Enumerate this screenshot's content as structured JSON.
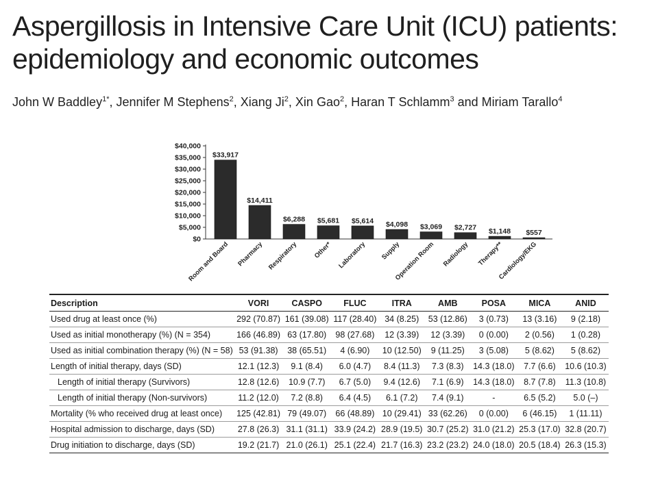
{
  "paper": {
    "title_line1": "Aspergillosis in Intensive Care Unit (ICU) patients:",
    "title_line2": "epidemiology and economic outcomes",
    "authors": [
      {
        "name": "John W Baddley",
        "sup": "1*",
        "sep": ", "
      },
      {
        "name": "Jennifer M Stephens",
        "sup": "2",
        "sep": ", "
      },
      {
        "name": "Xiang Ji",
        "sup": "2",
        "sep": ", "
      },
      {
        "name": "Xin Gao",
        "sup": "2",
        "sep": ", "
      },
      {
        "name": "Haran T Schlamm",
        "sup": "3",
        "sep": " and "
      },
      {
        "name": "Miriam Tarallo",
        "sup": "4",
        "sep": ""
      }
    ]
  },
  "chart_data": {
    "type": "bar",
    "title": "",
    "xlabel": "",
    "ylabel": "",
    "ylim": [
      0,
      40000
    ],
    "y_ticks": [
      "$0",
      "$5,000",
      "$10,000",
      "$15,000",
      "$20,000",
      "$25,000",
      "$30,000",
      "$35,000",
      "$40,000"
    ],
    "y_tick_values": [
      0,
      5000,
      10000,
      15000,
      20000,
      25000,
      30000,
      35000,
      40000
    ],
    "categories": [
      "Room and Board",
      "Pharmacy",
      "Respiratory",
      "Other*",
      "Laboratory",
      "Supply",
      "Operation Room",
      "Radiology",
      "Therapy**",
      "Cardiology/EKG"
    ],
    "values": [
      33917,
      14411,
      6288,
      5681,
      5614,
      4098,
      3069,
      2727,
      1148,
      557
    ],
    "data_labels": [
      "$33,917",
      "$14,411",
      "$6,288",
      "$5,681",
      "$5,614",
      "$4,098",
      "$3,069",
      "$2,727",
      "$1,148",
      "$557"
    ],
    "bar_color": "#2b2b2b",
    "grid": false,
    "legend": "none"
  },
  "table": {
    "headers": [
      "Description",
      "VORI",
      "CASPO",
      "FLUC",
      "ITRA",
      "AMB",
      "POSA",
      "MICA",
      "ANID"
    ],
    "rows": [
      {
        "indent": false,
        "cells": [
          "Used drug at least once (%)",
          "292 (70.87)",
          "161 (39.08)",
          "117 (28.40)",
          "34 (8.25)",
          "53 (12.86)",
          "3 (0.73)",
          "13 (3.16)",
          "9 (2.18)"
        ]
      },
      {
        "indent": false,
        "cells": [
          "Used as initial monotherapy (%) (N = 354)",
          "166 (46.89)",
          "63 (17.80)",
          "98 (27.68)",
          "12 (3.39)",
          "12 (3.39)",
          "0 (0.00)",
          "2 (0.56)",
          "1 (0.28)"
        ]
      },
      {
        "indent": false,
        "cells": [
          "Used as initial combination therapy (%) (N = 58)",
          "53 (91.38)",
          "38 (65.51)",
          "4 (6.90)",
          "10 (12.50)",
          "9 (11.25)",
          "3 (5.08)",
          "5 (8.62)",
          "5 (8.62)"
        ]
      },
      {
        "indent": false,
        "cells": [
          "Length of initial therapy, days (SD)",
          "12.1 (12.3)",
          "9.1 (8.4)",
          "6.0 (4.7)",
          "8.4 (11.3)",
          "7.3 (8.3)",
          "14.3 (18.0)",
          "7.7 (6.6)",
          "10.6 (10.3)"
        ]
      },
      {
        "indent": true,
        "cells": [
          "Length of initial therapy (Survivors)",
          "12.8 (12.6)",
          "10.9 (7.7)",
          "6.7 (5.0)",
          "9.4 (12.6)",
          "7.1 (6.9)",
          "14.3 (18.0)",
          "8.7 (7.8)",
          "11.3 (10.8)"
        ]
      },
      {
        "indent": true,
        "cells": [
          "Length of initial therapy (Non-survivors)",
          "11.2 (12.0)",
          "7.2 (8.8)",
          "6.4 (4.5)",
          "6.1 (7.2)",
          "7.4 (9.1)",
          "-",
          "6.5 (5.2)",
          "5.0 (–)"
        ]
      },
      {
        "indent": false,
        "cells": [
          "Mortality (% who received drug at least once)",
          "125 (42.81)",
          "79 (49.07)",
          "66 (48.89)",
          "10 (29.41)",
          "33 (62.26)",
          "0 (0.00)",
          "6 (46.15)",
          "1 (11.11)"
        ]
      },
      {
        "indent": false,
        "cells": [
          "Hospital admission to discharge, days (SD)",
          "27.8 (26.3)",
          "31.1 (31.1)",
          "33.9 (24.2)",
          "28.9 (19.5)",
          "30.7 (25.2)",
          "31.0 (21.2)",
          "25.3 (17.0)",
          "32.8 (20.7)"
        ]
      },
      {
        "indent": false,
        "cells": [
          "Drug initiation to discharge, days (SD)",
          "19.2 (21.7)",
          "21.0 (26.1)",
          "25.1 (22.4)",
          "21.7 (16.3)",
          "23.2 (23.2)",
          "24.0 (18.0)",
          "20.5 (18.4)",
          "26.3 (15.3)"
        ]
      }
    ]
  }
}
